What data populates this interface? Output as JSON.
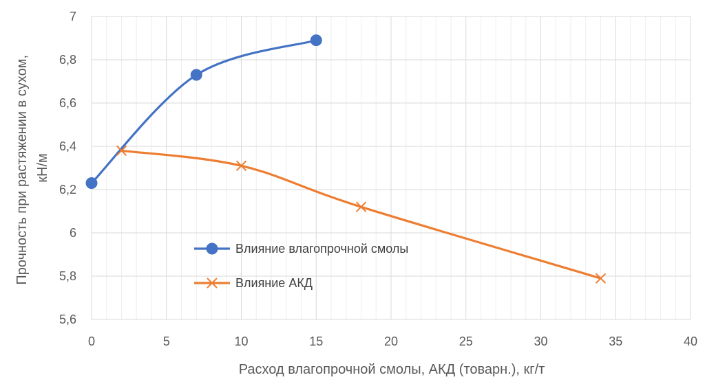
{
  "chart_data": {
    "type": "line",
    "title": "",
    "xlabel": "Расход влагопрочной смолы, АКД (товарн.), кг/т",
    "ylabel_lines": [
      "Прочность при растяжении в сухом,",
      "кН/м"
    ],
    "xlim": [
      0,
      40
    ],
    "ylim": [
      5.6,
      7
    ],
    "x_ticks": [
      0,
      5,
      10,
      15,
      20,
      25,
      30,
      35,
      40
    ],
    "x_tick_labels": [
      "0",
      "5",
      "10",
      "15",
      "20",
      "25",
      "30",
      "35",
      "40"
    ],
    "y_ticks": [
      5.6,
      5.8,
      6,
      6.2,
      6.4,
      6.6,
      6.8,
      7
    ],
    "y_tick_labels": [
      "5,6",
      "5,8",
      "6",
      "6,2",
      "6,4",
      "6,6",
      "6,8",
      "7"
    ],
    "x_minor_step": 1,
    "grid": true,
    "legend_placement": "center-left",
    "series": [
      {
        "name": "Влияние влагопрочной смолы",
        "color": "#4472C4",
        "marker": "circle",
        "smooth": true,
        "points": [
          [
            0,
            6.23
          ],
          [
            7,
            6.73
          ],
          [
            15,
            6.89
          ]
        ]
      },
      {
        "name": "Влияние АКД",
        "color": "#ED7D31",
        "marker": "x",
        "smooth": true,
        "points": [
          [
            2,
            6.38
          ],
          [
            10,
            6.31
          ],
          [
            18,
            6.12
          ],
          [
            34,
            5.79
          ]
        ]
      }
    ]
  }
}
